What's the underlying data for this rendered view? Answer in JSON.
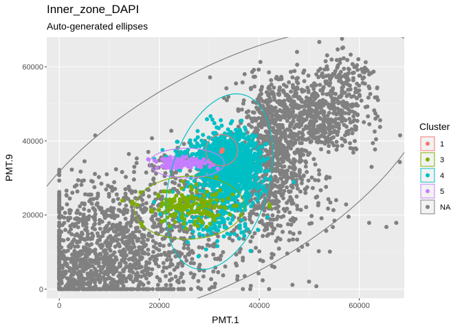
{
  "chart_data": {
    "type": "scatter",
    "title": "Inner_zone_DAPI",
    "subtitle": "Auto-generated ellipses",
    "xlabel": "PMT.1",
    "ylabel": "PMT.9",
    "xlim": [
      -2500,
      69000
    ],
    "ylim": [
      -2500,
      68000
    ],
    "x_ticks": [
      0,
      20000,
      40000,
      60000
    ],
    "x_tick_labels": [
      "0",
      "20000",
      "40000",
      "60000"
    ],
    "y_ticks": [
      0,
      20000,
      40000,
      60000
    ],
    "y_tick_labels": [
      "0",
      "20000",
      "40000",
      "60000"
    ],
    "grid": true,
    "legend": {
      "title": "Cluster",
      "placement": "right",
      "entries": [
        {
          "label": "1",
          "color": "#F8766D"
        },
        {
          "label": "3",
          "color": "#7CAE00"
        },
        {
          "label": "4",
          "color": "#00BFC4"
        },
        {
          "label": "5",
          "color": "#C77CFF"
        },
        {
          "label": "NA",
          "color": "#808080"
        }
      ]
    },
    "series": [
      {
        "name": "NA",
        "color": "#808080",
        "regions": [
          {
            "cx": 12000,
            "cy": 12000,
            "sx": 11000,
            "sy": 9000,
            "n": 1100
          },
          {
            "cx": 6000,
            "cy": 4000,
            "sx": 6000,
            "sy": 4000,
            "n": 350
          },
          {
            "cx": 42000,
            "cy": 34000,
            "sx": 3500,
            "sy": 11000,
            "n": 700
          },
          {
            "cx": 50000,
            "cy": 47000,
            "sx": 5500,
            "sy": 5500,
            "n": 650
          },
          {
            "cx": 58000,
            "cy": 56000,
            "sx": 3500,
            "sy": 3500,
            "n": 120
          },
          {
            "cx": 26000,
            "cy": 30000,
            "sx": 7000,
            "sy": 5000,
            "n": 160
          },
          {
            "cx": 47000,
            "cy": 22000,
            "sx": 9000,
            "sy": 9000,
            "n": 70
          }
        ]
      },
      {
        "name": "4",
        "color": "#00BFC4",
        "regions": [
          {
            "cx": 34000,
            "cy": 33000,
            "sx": 3000,
            "sy": 4500,
            "n": 1300
          },
          {
            "cx": 31000,
            "cy": 20000,
            "sx": 4000,
            "sy": 4000,
            "n": 180
          },
          {
            "cx": 28000,
            "cy": 36000,
            "sx": 4000,
            "sy": 2000,
            "n": 90
          }
        ]
      },
      {
        "name": "3",
        "color": "#7CAE00",
        "regions": [
          {
            "cx": 26000,
            "cy": 22000,
            "sx": 4500,
            "sy": 2500,
            "n": 180
          }
        ]
      },
      {
        "name": "5",
        "color": "#C77CFF",
        "regions": [
          {
            "cx": 24500,
            "cy": 34000,
            "sx": 3000,
            "sy": 700,
            "n": 110
          }
        ]
      },
      {
        "name": "1",
        "color": "#F8766D",
        "points": [
          [
            32500,
            37500
          ],
          [
            32600,
            37200
          ],
          [
            32400,
            37000
          ],
          [
            32700,
            37700
          ]
        ]
      }
    ],
    "ellipses": [
      {
        "cluster": "NA",
        "color": "#808080",
        "cx": 32500,
        "cy": 31000,
        "rx": 52000,
        "ry": 25000,
        "angle_deg": 42
      },
      {
        "cluster": "4",
        "color": "#00BFC4",
        "cx": 32000,
        "cy": 29000,
        "rx": 10000,
        "ry": 24000,
        "angle_deg": -10
      },
      {
        "cluster": "3",
        "color": "#7CAE00",
        "cx": 26000,
        "cy": 22000,
        "rx": 11000,
        "ry": 8500,
        "angle_deg": 5
      },
      {
        "cluster": "5",
        "color": "#C77CFF",
        "cx": 25500,
        "cy": 34000,
        "rx": 7500,
        "ry": 4000,
        "angle_deg": 0
      },
      {
        "cluster": "1",
        "color": "#F8766D",
        "cx": 32500,
        "cy": 37500,
        "rx": 3200,
        "ry": 4200,
        "angle_deg": 0
      }
    ]
  }
}
